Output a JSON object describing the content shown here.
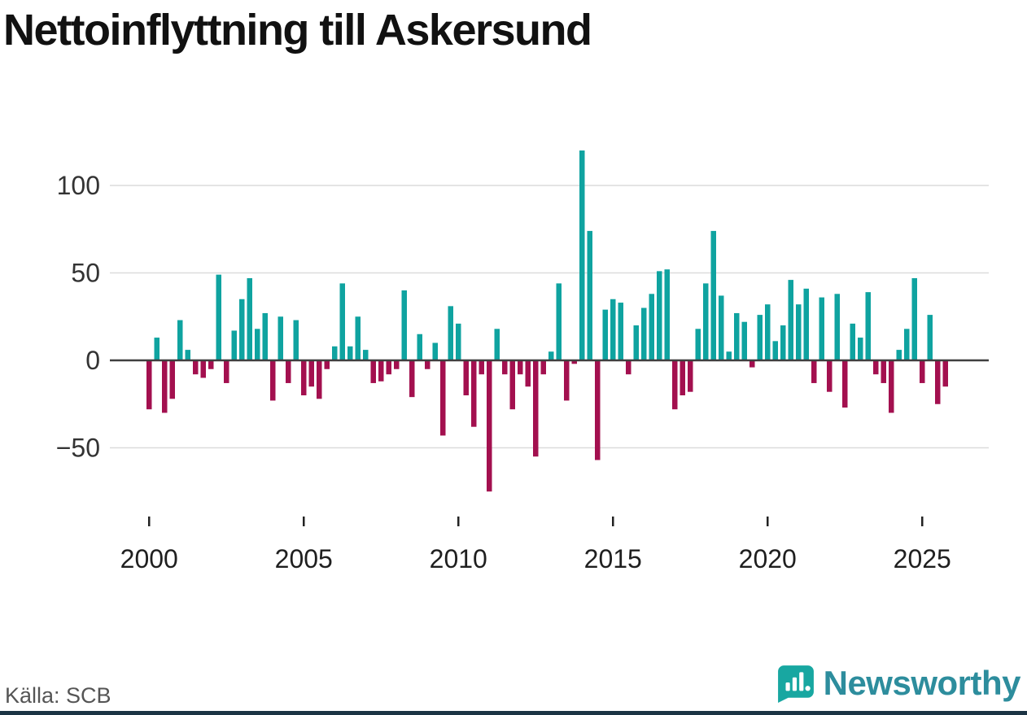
{
  "title": "Nettoinflyttning till Askersund",
  "source": "Källa: SCB",
  "brand": {
    "name": "Newsworthy",
    "color": "#2d8d9d",
    "icon_color": "#18a7a1"
  },
  "colors": {
    "accent_bottom_bar": "#1c3444",
    "gridline": "#dcdcdc",
    "zero_line": "#3f3f3f",
    "tick": "#222222"
  },
  "chart_data": {
    "type": "bar",
    "title": "Nettoinflyttning till Askersund",
    "xlabel": "",
    "ylabel": "",
    "frequency": "quarterly",
    "start_year": 2000,
    "start_quarter": 1,
    "values": [
      -28,
      13,
      -30,
      -22,
      23,
      6,
      -8,
      -10,
      -5,
      49,
      -13,
      17,
      35,
      47,
      18,
      27,
      -23,
      25,
      -13,
      23,
      -20,
      -15,
      -22,
      -5,
      8,
      44,
      8,
      25,
      6,
      -13,
      -12,
      -8,
      -5,
      40,
      -21,
      15,
      -5,
      10,
      -43,
      31,
      21,
      -20,
      -38,
      -8,
      -75,
      18,
      -8,
      -28,
      -8,
      -15,
      -55,
      -8,
      5,
      44,
      -23,
      -2,
      120,
      74,
      -57,
      29,
      35,
      33,
      -8,
      20,
      30,
      38,
      51,
      52,
      -28,
      -20,
      -18,
      18,
      44,
      74,
      37,
      5,
      27,
      22,
      -4,
      26,
      32,
      11,
      20,
      46,
      32,
      41,
      -13,
      36,
      -18,
      38,
      -27,
      21,
      13,
      39,
      -8,
      -13,
      -30,
      6,
      18,
      47,
      -13,
      26,
      -25,
      -15
    ],
    "y_ticks": [
      100,
      50,
      0,
      -50
    ],
    "y_tick_labels": [
      "100",
      "50",
      "0",
      "−50"
    ],
    "x_ticks": [
      2000,
      2005,
      2010,
      2015,
      2020,
      2025
    ],
    "ylim": [
      -80,
      125
    ],
    "grid": true,
    "legend": "none",
    "positive_color": "#0fa3a0",
    "negative_color": "#a3104f"
  }
}
